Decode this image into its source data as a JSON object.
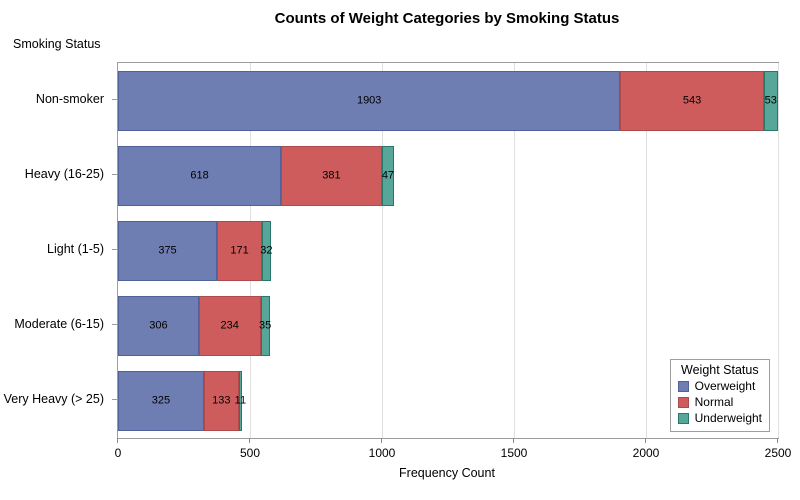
{
  "chart_data": {
    "type": "bar",
    "orientation": "horizontal-stacked",
    "title": "Counts of Weight Categories by Smoking Status",
    "ylabel": "Smoking Status",
    "xlabel": "Frequency Count",
    "categories": [
      "Non-smoker",
      "Heavy (16-25)",
      "Light (1-5)",
      "Moderate (6-15)",
      "Very Heavy (> 25)"
    ],
    "series": [
      {
        "name": "Overweight",
        "color": "#6f7eb2",
        "border_color": "#50619b",
        "values": [
          1903,
          618,
          375,
          306,
          325
        ]
      },
      {
        "name": "Normal",
        "color": "#ce5c5c",
        "border_color": "#ae4a4b",
        "values": [
          543,
          381,
          171,
          234,
          133
        ]
      },
      {
        "name": "Underweight",
        "color": "#57a69a",
        "border_color": "#27786b",
        "values": [
          53,
          47,
          32,
          35,
          11
        ]
      }
    ],
    "totals": [
      2499,
      1046,
      578,
      575,
      469
    ],
    "xlim": [
      0,
      2500
    ],
    "xticks": [
      0,
      500,
      1000,
      1500,
      2000,
      2500
    ],
    "grid": true,
    "value_labels_shown": true,
    "legend": {
      "title": "Weight Status",
      "position": "inside-bottom-right",
      "entries": [
        "Overweight",
        "Normal",
        "Underweight"
      ]
    }
  }
}
